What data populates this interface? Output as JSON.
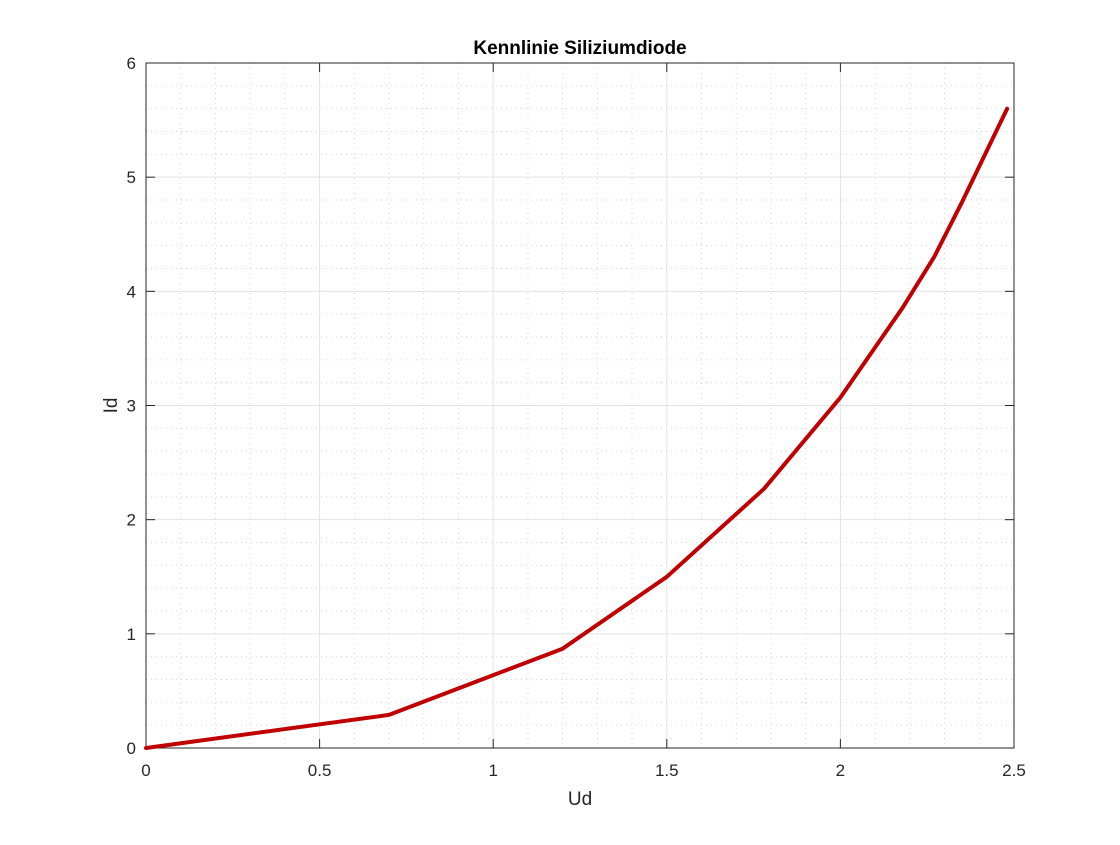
{
  "chart_data": {
    "type": "line",
    "title": "Kennlinie Siliziumdiode",
    "xlabel": "Ud",
    "ylabel": "Id",
    "xlim": [
      0,
      2.5
    ],
    "ylim": [
      0,
      6
    ],
    "xticks": [
      0,
      0.5,
      1,
      1.5,
      2,
      2.5
    ],
    "yticks": [
      0,
      1,
      2,
      3,
      4,
      5,
      6
    ],
    "xtick_labels": [
      "0",
      "0.5",
      "1",
      "1.5",
      "2",
      "2.5"
    ],
    "ytick_labels": [
      "0",
      "1",
      "2",
      "3",
      "4",
      "5",
      "6"
    ],
    "grid": true,
    "minor_grid": true,
    "x_minor_step": 0.1,
    "y_minor_step": 0.2,
    "series": [
      {
        "color": "#c00000",
        "x": [
          0,
          0.7,
          1.2,
          1.5,
          1.78,
          2.0,
          2.18,
          2.27,
          2.35,
          2.48
        ],
        "y": [
          0,
          0.29,
          0.87,
          1.5,
          2.27,
          3.07,
          3.86,
          4.3,
          4.78,
          5.6
        ]
      }
    ]
  }
}
